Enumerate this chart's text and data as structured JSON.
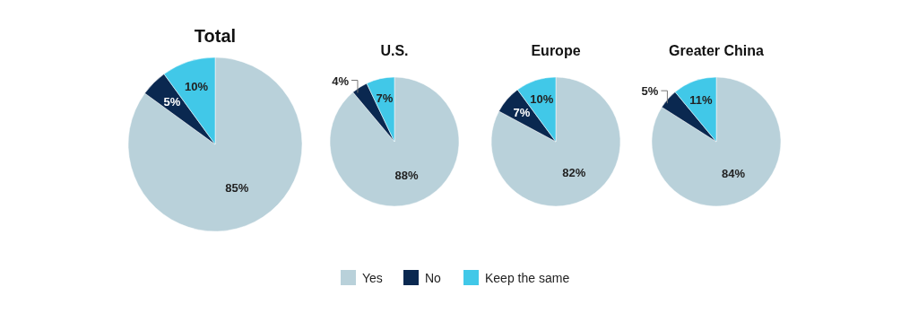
{
  "chart_data": [
    {
      "type": "pie",
      "title": "Total",
      "categories": [
        "Yes",
        "No",
        "Keep the same"
      ],
      "values": [
        85,
        5,
        10
      ],
      "colors": [
        "#b9d1da",
        "#0a2850",
        "#41c8e8"
      ],
      "value_labels": [
        "85%",
        "5%",
        "10%"
      ],
      "legend": "bottom"
    },
    {
      "type": "pie",
      "title": "U.S.",
      "categories": [
        null,
        null,
        null
      ],
      "values": [
        88,
        4,
        7
      ],
      "colors": [
        "#b9d1da",
        "#0a2850",
        "#41c8e8"
      ],
      "value_labels": [
        "88%",
        "4%",
        "7%"
      ]
    },
    {
      "type": "pie",
      "title": "Europe",
      "categories": [
        null,
        null,
        null
      ],
      "values": [
        82,
        7,
        10
      ],
      "colors": [
        "#b9d1da",
        "#0a2850",
        "#41c8e8"
      ],
      "value_labels": [
        "82%",
        "7%",
        "10%"
      ]
    },
    {
      "type": "pie",
      "title": "Greater China",
      "categories": [
        null,
        null,
        null
      ],
      "values": [
        84,
        5,
        11
      ],
      "colors": [
        "#b9d1da",
        "#0a2850",
        "#41c8e8"
      ],
      "value_labels": [
        "84%",
        "5%",
        "11%"
      ]
    }
  ]
}
